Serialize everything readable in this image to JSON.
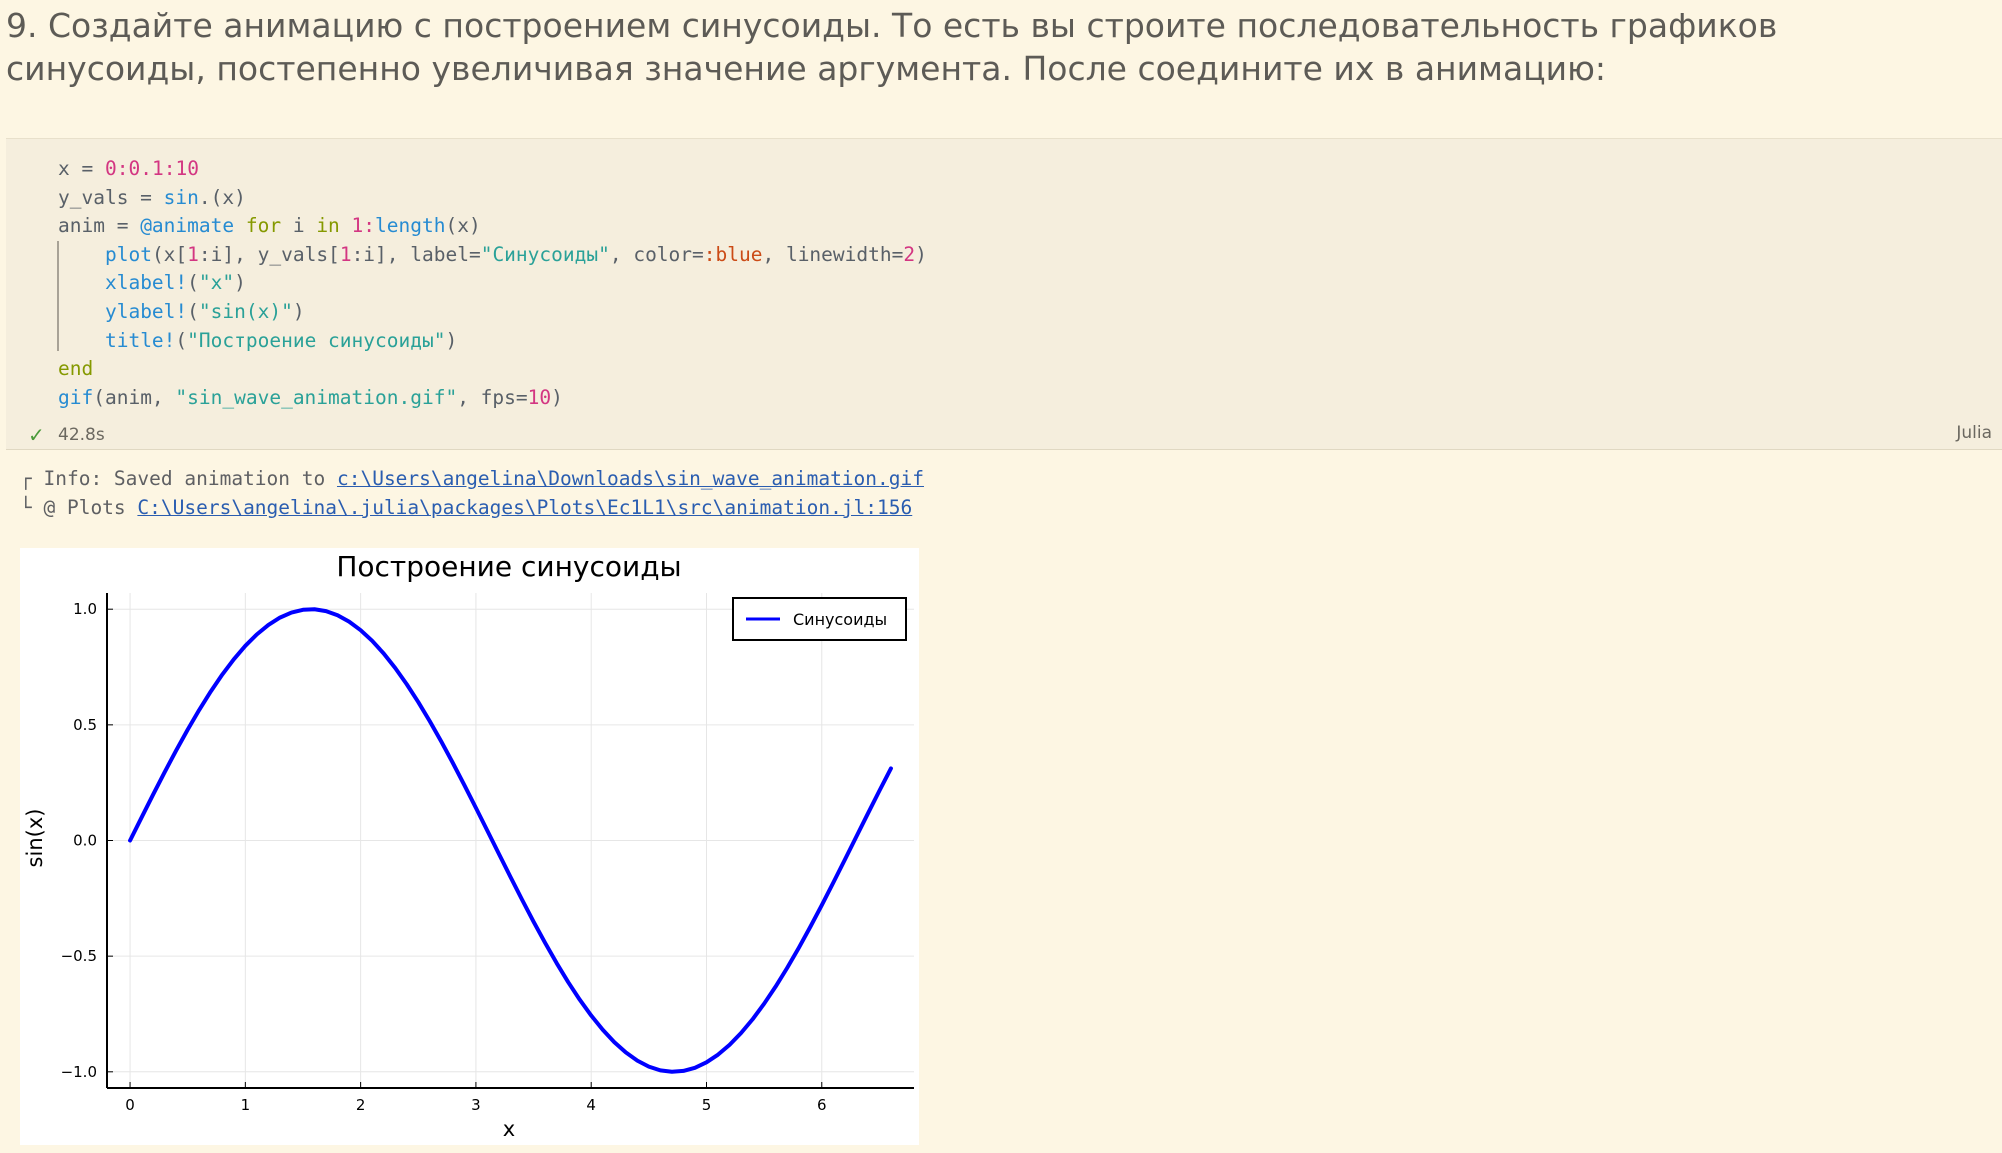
{
  "task_text": "9. Создайте анимацию с построением синусоиды. То есть вы строите последовательность графиков синусоиды, постепенно увеличивая значение аргумента. После соедините их в анимацию:",
  "code": {
    "line1": {
      "a": "x = ",
      "b": "0",
      "c": ":",
      "d": "0.1",
      "e": ":",
      "f": "10"
    },
    "line2": {
      "a": "y_vals = ",
      "b": "sin",
      "c": ".(x)"
    },
    "line3": {
      "a": "anim = ",
      "b": "@animate",
      "c": " for",
      "d": " i ",
      "e": "in",
      "f": " 1",
      "g": ":",
      "h": "length",
      "i": "(x)"
    },
    "line4": {
      "a": "    ",
      "b": "plot",
      "c": "(x[",
      "d": "1",
      "e": ":i], y_vals[",
      "f": "1",
      "g": ":i], label=",
      "h": "\"Синусоиды\"",
      "i": ", color=",
      "j": ":blue",
      "k": ", linewidth=",
      "l": "2",
      "m": ")"
    },
    "line5": {
      "a": "    ",
      "b": "xlabel!",
      "c": "(",
      "d": "\"x\"",
      "e": ")"
    },
    "line6": {
      "a": "    ",
      "b": "ylabel!",
      "c": "(",
      "d": "\"sin(x)\"",
      "e": ")"
    },
    "line7": {
      "a": "    ",
      "b": "title!",
      "c": "(",
      "d": "\"Построение синусоиды\"",
      "e": ")"
    },
    "line8": {
      "a": "end"
    },
    "line9": {
      "a": "gif",
      "b": "(anim, ",
      "c": "\"sin_wave_animation.gif\"",
      "d": ", fps=",
      "e": "10",
      "f": ")"
    }
  },
  "status": {
    "check": "✓",
    "time": "42.8s",
    "language": "Julia"
  },
  "output": {
    "line1_prefix": "┌ Info: Saved animation to ",
    "line1_link": "c:\\Users\\angelina\\Downloads\\sin_wave_animation.gif",
    "line2_prefix": "└ @ Plots ",
    "line2_link": "C:\\Users\\angelina\\.julia\\packages\\Plots\\Ec1L1\\src\\animation.jl:156"
  },
  "chart_data": {
    "type": "line",
    "title": "Построение синусоиды",
    "xlabel": "x",
    "ylabel": "sin(x)",
    "xlim": [
      -0.2,
      6.8
    ],
    "ylim": [
      -1.07,
      1.07
    ],
    "xticks": [
      0,
      1,
      2,
      3,
      4,
      5,
      6
    ],
    "yticks": [
      -1.0,
      -0.5,
      0.0,
      0.5,
      1.0
    ],
    "ytick_labels": [
      "−1.0",
      "−0.5",
      "0.0",
      "0.5",
      "1.0"
    ],
    "grid": true,
    "legend_position": "top-right",
    "color": "#0000ff",
    "series": [
      {
        "name": "Синусоиды",
        "x": [
          0.0,
          0.1,
          0.2,
          0.3,
          0.4,
          0.5,
          0.6,
          0.7,
          0.8,
          0.9,
          1.0,
          1.1,
          1.2,
          1.3,
          1.4,
          1.5,
          1.6,
          1.7,
          1.8,
          1.9,
          2.0,
          2.1,
          2.2,
          2.3,
          2.4,
          2.5,
          2.6,
          2.7,
          2.8,
          2.9,
          3.0,
          3.1,
          3.2,
          3.3,
          3.4,
          3.5,
          3.6,
          3.7,
          3.8,
          3.9,
          4.0,
          4.1,
          4.2,
          4.3,
          4.4,
          4.5,
          4.6,
          4.7,
          4.8,
          4.9,
          5.0,
          5.1,
          5.2,
          5.3,
          5.4,
          5.5,
          5.6,
          5.7,
          5.8,
          5.9,
          6.0,
          6.1,
          6.2,
          6.3,
          6.4,
          6.5,
          6.6
        ],
        "y": [
          0.0,
          0.0998,
          0.1987,
          0.2955,
          0.3894,
          0.4794,
          0.5646,
          0.6442,
          0.7174,
          0.7833,
          0.8415,
          0.8912,
          0.932,
          0.9636,
          0.9854,
          0.9975,
          0.9996,
          0.9917,
          0.9738,
          0.9463,
          0.9093,
          0.8632,
          0.8085,
          0.7457,
          0.6755,
          0.5985,
          0.5155,
          0.4274,
          0.335,
          0.2392,
          0.1411,
          0.0416,
          -0.0584,
          -0.1577,
          -0.2555,
          -0.3508,
          -0.4425,
          -0.5298,
          -0.6119,
          -0.6878,
          -0.7568,
          -0.8183,
          -0.8716,
          -0.9162,
          -0.9516,
          -0.9775,
          -0.9937,
          -0.9999,
          -0.9962,
          -0.9825,
          -0.9589,
          -0.9258,
          -0.8835,
          -0.8323,
          -0.7728,
          -0.7055,
          -0.6313,
          -0.5507,
          -0.4646,
          -0.3739,
          -0.2794,
          -0.1822,
          -0.0831,
          0.0168,
          0.1165,
          0.2151,
          0.3115
        ]
      }
    ]
  }
}
